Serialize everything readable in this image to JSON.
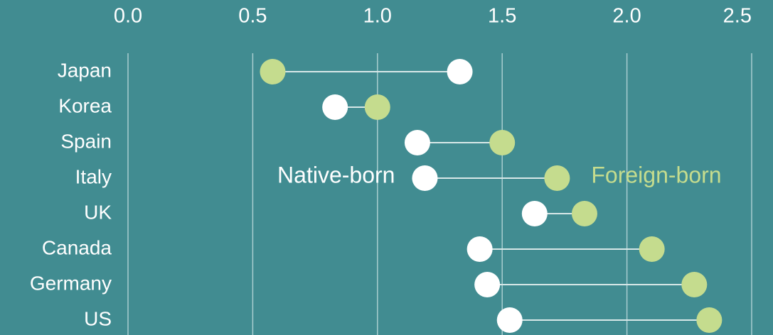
{
  "chart_data": {
    "type": "dumbbell",
    "categories": [
      "Japan",
      "Korea",
      "Spain",
      "Italy",
      "UK",
      "Canada",
      "Germany",
      "US"
    ],
    "series": [
      {
        "name": "Native-born",
        "color": "#ffffff",
        "values": [
          1.33,
          0.83,
          1.16,
          1.19,
          1.63,
          1.41,
          1.44,
          1.53
        ]
      },
      {
        "name": "Foreign-born",
        "color": "#c5dc8e",
        "values": [
          0.58,
          1.0,
          1.5,
          1.72,
          1.83,
          2.1,
          2.27,
          2.33
        ]
      }
    ],
    "xlim": [
      0,
      2.5
    ],
    "xticks": [
      {
        "value": 0,
        "label": "0.0"
      },
      0.5,
      {
        "value": 1,
        "label": "1.0"
      },
      1.5,
      {
        "value": 2,
        "label": "2.0"
      },
      2.5
    ],
    "grid": true
  }
}
